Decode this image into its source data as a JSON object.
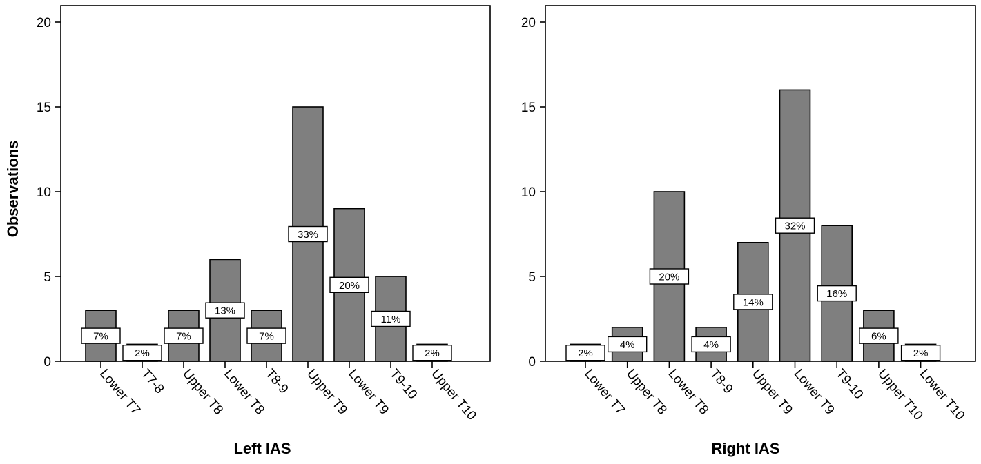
{
  "chart_data": [
    {
      "type": "bar",
      "title": "",
      "xlabel": "Left IAS",
      "ylabel": "Observations",
      "ylim": [
        0,
        20
      ],
      "yticks": [
        0,
        5,
        10,
        15,
        20
      ],
      "grid": false,
      "legend": "none",
      "bar_color": "#7f7f7f",
      "categories": [
        "Lower T7",
        "T7-8",
        "Upper T8",
        "Lower T8",
        "T8-9",
        "Upper T9",
        "Lower T9",
        "T9-10",
        "Upper T10"
      ],
      "values": [
        3,
        1,
        3,
        6,
        3,
        15,
        9,
        5,
        1
      ],
      "percent_labels": [
        "7%",
        "2%",
        "7%",
        "13%",
        "7%",
        "33%",
        "20%",
        "11%",
        "2%"
      ]
    },
    {
      "type": "bar",
      "title": "",
      "xlabel": "Right IAS",
      "ylabel": "",
      "ylim": [
        0,
        20
      ],
      "yticks": [
        0,
        5,
        10,
        15,
        20
      ],
      "grid": false,
      "legend": "none",
      "bar_color": "#7f7f7f",
      "categories": [
        "Lower T7",
        "Upper T8",
        "Lower T8",
        "T8-9",
        "Upper T9",
        "Lower T9",
        "T9-10",
        "Upper T10",
        "Lower T10"
      ],
      "values": [
        1,
        2,
        10,
        2,
        7,
        16,
        8,
        3,
        1
      ],
      "percent_labels": [
        "2%",
        "4%",
        "20%",
        "4%",
        "14%",
        "32%",
        "16%",
        "6%",
        "2%"
      ]
    }
  ]
}
